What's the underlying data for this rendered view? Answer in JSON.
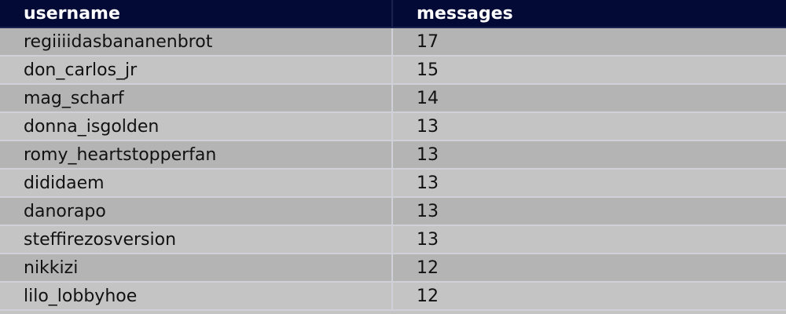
{
  "table": {
    "headers": [
      "username",
      "messages"
    ],
    "rows": [
      [
        "regiiiidasbananenbrot",
        "17"
      ],
      [
        "don_carlos_jr",
        "15"
      ],
      [
        "mag_scharf",
        "14"
      ],
      [
        "donna_isgolden",
        "13"
      ],
      [
        "romy_heartstopperfan",
        "13"
      ],
      [
        "dididaem",
        "13"
      ],
      [
        "danorapo",
        "13"
      ],
      [
        "steffirezosversion",
        "13"
      ],
      [
        "nikkizi",
        "12"
      ],
      [
        "lilo_lobbyhoe",
        "12"
      ]
    ]
  },
  "colors": {
    "header_bg": "#030a36",
    "row_odd": "#b4b4b4",
    "row_even": "#c4c4c4"
  }
}
